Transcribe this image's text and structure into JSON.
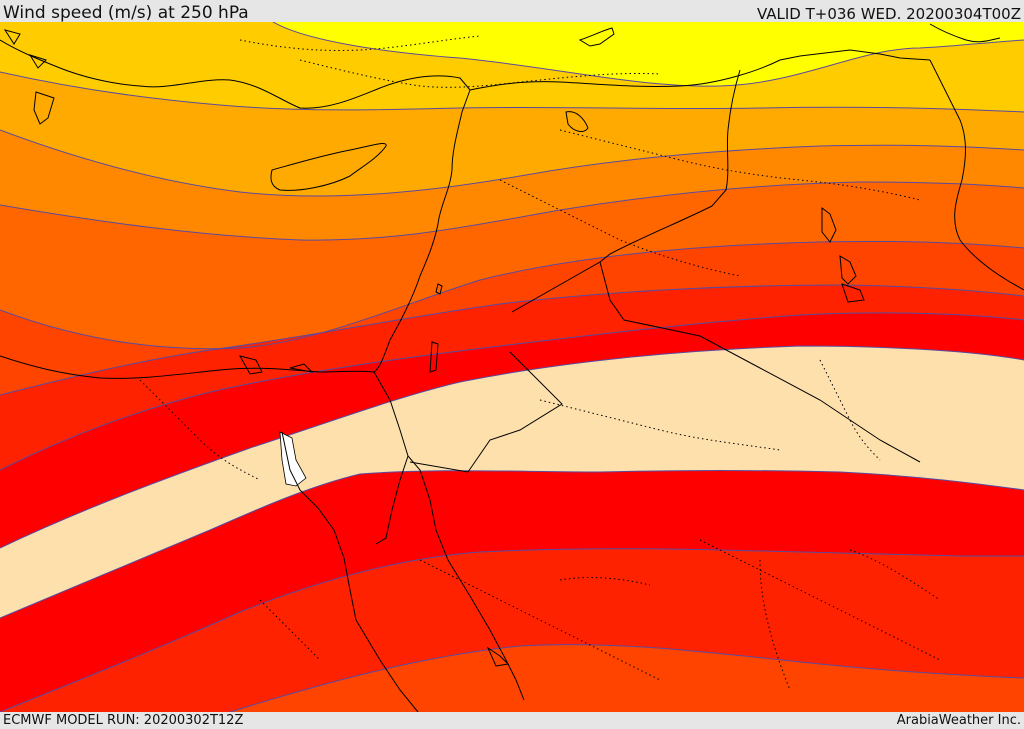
{
  "header": {
    "title": "Wind speed (m/s) at 250 hPa",
    "valid": "VALID T+036 WED. 20200304T00Z"
  },
  "footer": {
    "model_run": "ECMWF MODEL RUN: 20200302T12Z",
    "credit": "ArabiaWeather Inc."
  },
  "map": {
    "bands": [
      {
        "name": "band-1",
        "color": "#ffff00"
      },
      {
        "name": "band-2",
        "color": "#ffcc00"
      },
      {
        "name": "band-3",
        "color": "#ffaa00"
      },
      {
        "name": "band-4",
        "color": "#ff8800"
      },
      {
        "name": "band-5",
        "color": "#ff6600"
      },
      {
        "name": "band-6",
        "color": "#ff4400"
      },
      {
        "name": "band-7",
        "color": "#ff2200"
      },
      {
        "name": "band-8",
        "color": "#ff0000"
      },
      {
        "name": "jet-core",
        "color": "#fde0ac"
      },
      {
        "name": "band-8-south",
        "color": "#ff0000"
      },
      {
        "name": "band-7-south",
        "color": "#ff2200"
      },
      {
        "name": "band-6-south",
        "color": "#ff4400"
      }
    ],
    "contour_color": "#5a4a9e",
    "coast_color": "#000000"
  }
}
